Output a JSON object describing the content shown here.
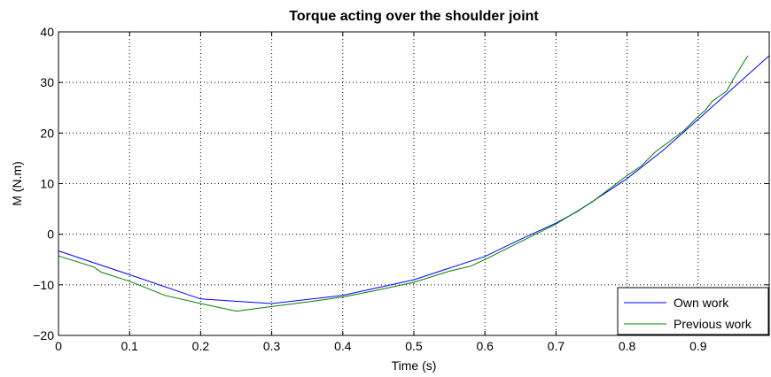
{
  "chart_data": {
    "type": "line",
    "title": "Torque acting over the shoulder joint",
    "xlabel": "Time (s)",
    "ylabel": "M (N.m)",
    "xlim": [
      0,
      1
    ],
    "ylim": [
      -20,
      40
    ],
    "xticks": [
      0,
      0.1,
      0.2,
      0.3,
      0.4,
      0.5,
      0.6,
      0.7,
      0.8,
      0.9
    ],
    "yticks": [
      -20,
      -10,
      0,
      10,
      20,
      30,
      40
    ],
    "xtick_labels": [
      "0",
      "0.1",
      "0.2",
      "0.3",
      "0.4",
      "0.5",
      "0.6",
      "0.7",
      "0.8",
      "0.9"
    ],
    "ytick_labels": [
      "−20",
      "−10",
      "0",
      "10",
      "20",
      "30",
      "40"
    ],
    "grid": true,
    "legend_position": "bottom-right",
    "series": [
      {
        "name": "Own work",
        "color": "#0000ff",
        "x": [
          0,
          0.1,
          0.2,
          0.3,
          0.4,
          0.5,
          0.6,
          0.65,
          0.7,
          0.73,
          0.8,
          0.85,
          0.9,
          0.95,
          1.0
        ],
        "y": [
          -3.3,
          -8.0,
          -12.8,
          -13.7,
          -12.1,
          -9.0,
          -4.4,
          -1.0,
          2.2,
          4.5,
          11.0,
          16.5,
          22.7,
          29.0,
          35.3
        ]
      },
      {
        "name": "Previous work",
        "color": "#008000",
        "x": [
          0,
          0.05,
          0.06,
          0.1,
          0.15,
          0.2,
          0.25,
          0.3,
          0.35,
          0.4,
          0.45,
          0.5,
          0.55,
          0.58,
          0.6,
          0.65,
          0.7,
          0.75,
          0.8,
          0.82,
          0.84,
          0.88,
          0.9,
          0.91,
          0.92,
          0.93,
          0.94,
          0.95,
          0.97
        ],
        "y": [
          -4.3,
          -6.5,
          -7.5,
          -9.3,
          -12.1,
          -13.7,
          -15.2,
          -14.3,
          -13.4,
          -12.4,
          -11.0,
          -9.5,
          -7.3,
          -6.3,
          -5.0,
          -1.5,
          2.0,
          6.3,
          11.6,
          13.5,
          16.3,
          20.5,
          23.3,
          24.5,
          26.3,
          27.3,
          28.3,
          30.8,
          35.3
        ]
      }
    ]
  }
}
